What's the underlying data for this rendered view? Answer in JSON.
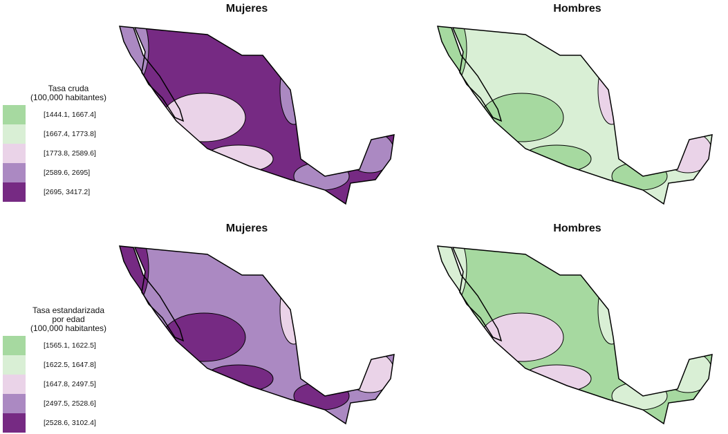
{
  "panels": [
    {
      "title": "Mujeres",
      "dominant": "#762a83",
      "accents": [
        "#ab89c2",
        "#ead3e8",
        "#ab89c2"
      ]
    },
    {
      "title": "Hombres",
      "dominant": "#d9efd5",
      "accents": [
        "#a6d9a0",
        "#a6d9a0",
        "#ead3e8"
      ]
    },
    {
      "title": "Mujeres",
      "dominant": "#ab89c2",
      "accents": [
        "#762a83",
        "#762a83",
        "#ead3e8"
      ]
    },
    {
      "title": "Hombres",
      "dominant": "#a6d9a0",
      "accents": [
        "#d9efd5",
        "#ead3e8",
        "#d9efd5"
      ]
    }
  ],
  "legend_top": {
    "title_lines": [
      "Tasa cruda",
      "(100,000 habitantes)"
    ],
    "items": [
      {
        "label": "[1444.1, 1667.4]",
        "color": "#a6d9a0"
      },
      {
        "label": "[1667.4, 1773.8]",
        "color": "#d9efd5"
      },
      {
        "label": "[1773.8, 2589.6]",
        "color": "#ead3e8"
      },
      {
        "label": "[2589.6, 2695]",
        "color": "#ab89c2"
      },
      {
        "label": "[2695, 3417.2]",
        "color": "#762a83"
      }
    ]
  },
  "legend_bottom": {
    "title_lines": [
      "Tasa estandarizada",
      "por edad",
      "(100,000 habitantes)"
    ],
    "items": [
      {
        "label": "[1565.1, 1622.5]",
        "color": "#a6d9a0"
      },
      {
        "label": "[1622.5, 1647.8]",
        "color": "#d9efd5"
      },
      {
        "label": "[1647.8, 2497.5]",
        "color": "#ead3e8"
      },
      {
        "label": "[2497.5, 2528.6]",
        "color": "#ab89c2"
      },
      {
        "label": "[2528.6, 3102.4]",
        "color": "#762a83"
      }
    ]
  }
}
